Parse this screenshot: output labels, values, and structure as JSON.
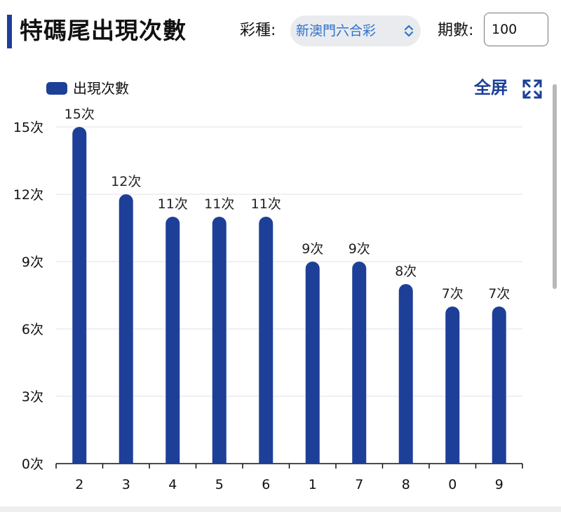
{
  "header": {
    "title": "特碼尾出現次數",
    "lottery_label": "彩種:",
    "lottery_value": "新澳門六合彩",
    "issues_label": "期數:",
    "issues_value": "100"
  },
  "toolbar": {
    "fullscreen_label": "全屏",
    "fullscreen_icon": "expand-icon"
  },
  "colors": {
    "accent": "#1d3f97",
    "select_text": "#2e73c9"
  },
  "chart_data": {
    "type": "bar",
    "categories": [
      "2",
      "3",
      "4",
      "5",
      "6",
      "1",
      "7",
      "8",
      "0",
      "9"
    ],
    "series": [
      {
        "name": "出現次數",
        "values": [
          15,
          12,
          11,
          11,
          11,
          9,
          9,
          8,
          7,
          7
        ]
      }
    ],
    "value_suffix": "次",
    "ylim": [
      0,
      15
    ],
    "yticks": [
      0,
      3,
      6,
      9,
      12,
      15
    ],
    "ytick_labels": [
      "0次",
      "3次",
      "6次",
      "9次",
      "12次",
      "15次"
    ],
    "data_labels": [
      "15次",
      "12次",
      "11次",
      "11次",
      "11次",
      "9次",
      "9次",
      "8次",
      "7次",
      "7次"
    ],
    "legend": "top-left",
    "grid": true
  }
}
